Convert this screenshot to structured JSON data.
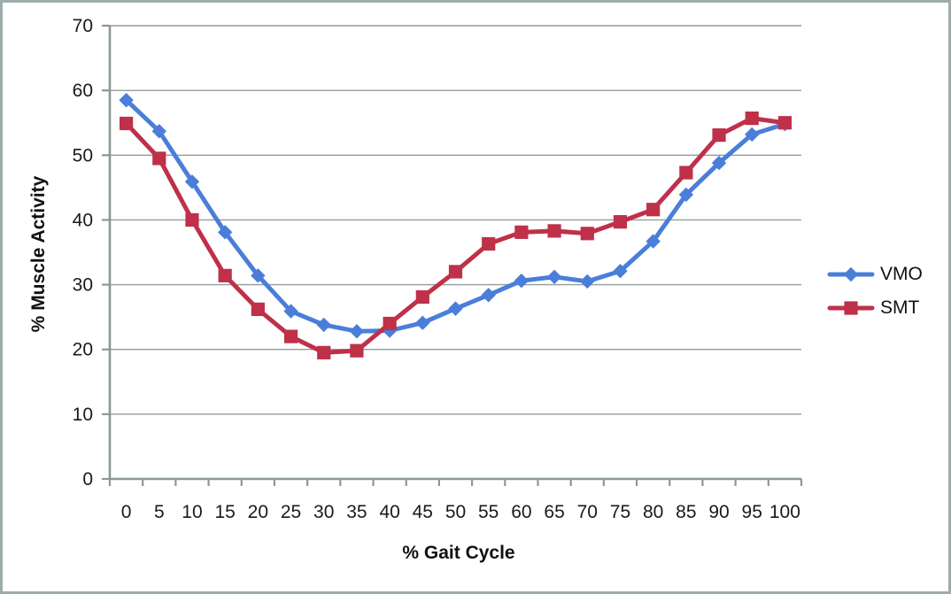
{
  "page": {
    "background": "#ffffff",
    "border_color": "#9EACAC"
  },
  "colors": {
    "axis": "#8A9898",
    "gridline": "#909E9E",
    "tick_text": "#1A1A1A",
    "title_text": "#111111"
  },
  "chart_data": {
    "type": "line",
    "title": "",
    "xlabel": "% Gait Cycle",
    "ylabel": "% Muscle Activity",
    "x_categories": [
      "0",
      "5",
      "10",
      "15",
      "20",
      "25",
      "30",
      "35",
      "40",
      "45",
      "50",
      "55",
      "60",
      "65",
      "70",
      "75",
      "80",
      "85",
      "90",
      "95",
      "100"
    ],
    "y_ticks": [
      0,
      10,
      20,
      30,
      40,
      50,
      60,
      70
    ],
    "ylim": [
      0,
      70
    ],
    "grid": "horizontal",
    "legend_position": "right",
    "series": [
      {
        "name": "VMO",
        "color": "#4A7ED9",
        "marker": "diamond",
        "values": [
          58.5,
          53.7,
          45.9,
          38.1,
          31.4,
          25.9,
          23.8,
          22.8,
          22.9,
          24.1,
          26.3,
          28.4,
          30.6,
          31.2,
          30.5,
          32.1,
          36.7,
          43.9,
          48.8,
          53.2,
          54.8
        ]
      },
      {
        "name": "SMT",
        "color": "#BF3049",
        "marker": "square",
        "values": [
          54.9,
          49.5,
          40.0,
          31.4,
          26.2,
          22.0,
          19.5,
          19.8,
          24.0,
          28.1,
          32.0,
          36.3,
          38.1,
          38.3,
          37.9,
          39.7,
          41.6,
          47.3,
          53.1,
          55.7,
          55.0
        ]
      }
    ]
  }
}
